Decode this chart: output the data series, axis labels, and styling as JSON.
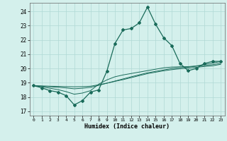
{
  "xlabel": "Humidex (Indice chaleur)",
  "bg_color": "#d4f0ec",
  "grid_color": "#b0d8d4",
  "line_color": "#1a6b5a",
  "xlim": [
    -0.5,
    23.5
  ],
  "ylim": [
    16.7,
    24.6
  ],
  "xticks": [
    0,
    1,
    2,
    3,
    4,
    5,
    6,
    7,
    8,
    9,
    10,
    11,
    12,
    13,
    14,
    15,
    16,
    17,
    18,
    19,
    20,
    21,
    22,
    23
  ],
  "yticks": [
    17,
    18,
    19,
    20,
    21,
    22,
    23,
    24
  ],
  "main_y": [
    18.8,
    18.65,
    18.45,
    18.35,
    18.1,
    17.45,
    17.75,
    18.35,
    18.5,
    19.8,
    21.75,
    22.7,
    22.8,
    23.2,
    24.3,
    23.1,
    22.15,
    21.6,
    20.35,
    19.85,
    20.0,
    20.35,
    20.5,
    20.5
  ],
  "line2_y": [
    18.8,
    18.72,
    18.62,
    18.52,
    18.38,
    18.2,
    18.28,
    18.45,
    18.9,
    19.2,
    19.42,
    19.55,
    19.65,
    19.75,
    19.85,
    19.95,
    20.05,
    20.1,
    20.12,
    20.13,
    20.18,
    20.28,
    20.38,
    20.48
  ],
  "line3_y": [
    18.8,
    18.76,
    18.72,
    18.68,
    18.64,
    18.58,
    18.62,
    18.68,
    18.82,
    18.97,
    19.12,
    19.27,
    19.42,
    19.56,
    19.7,
    19.8,
    19.9,
    20.0,
    20.06,
    20.1,
    20.16,
    20.21,
    20.27,
    20.36
  ],
  "line4_y": [
    18.8,
    18.78,
    18.76,
    18.75,
    18.73,
    18.72,
    18.73,
    18.76,
    18.86,
    18.97,
    19.1,
    19.22,
    19.36,
    19.5,
    19.64,
    19.74,
    19.84,
    19.92,
    19.98,
    20.03,
    20.08,
    20.14,
    20.19,
    20.29
  ]
}
